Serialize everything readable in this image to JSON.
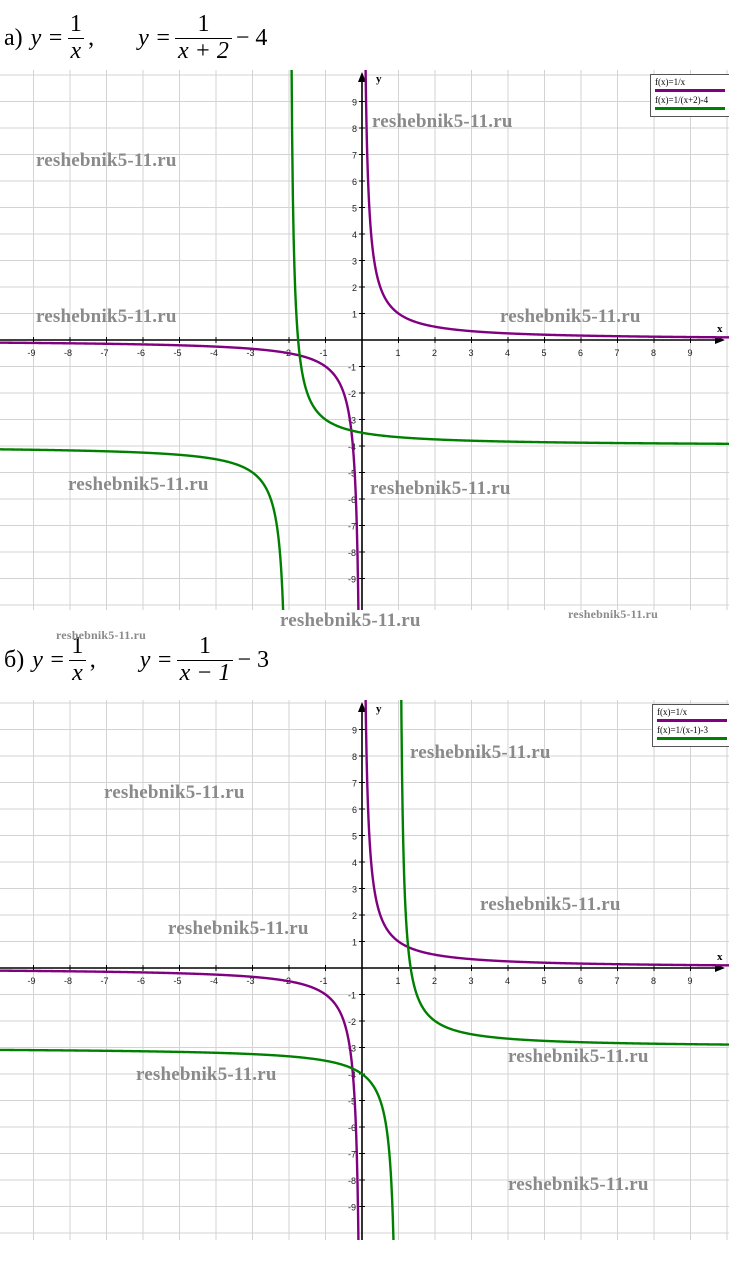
{
  "chart_data": [
    {
      "type": "line",
      "part_label": "а)",
      "formulas": {
        "eq1_lhs": "y =",
        "eq1_num": "1",
        "eq1_den": "x",
        "eq1_tail": ",",
        "eq2_lhs": "y =",
        "eq2_num": "1",
        "eq2_den": "x + 2",
        "eq2_tail": "− 4"
      },
      "xlabel": "x",
      "ylabel": "y",
      "xlim": [
        -10,
        10
      ],
      "ylim": [
        -10,
        10
      ],
      "xticks": [
        -9,
        -8,
        -7,
        -6,
        -5,
        -4,
        -3,
        -2,
        -1,
        1,
        2,
        3,
        4,
        5,
        6,
        7,
        8,
        9
      ],
      "yticks": [
        -9,
        -8,
        -7,
        -6,
        -5,
        -4,
        -3,
        -2,
        -1,
        1,
        2,
        3,
        4,
        5,
        6,
        7,
        8,
        9
      ],
      "grid": true,
      "legend_position": "top-right",
      "series": [
        {
          "name": "f(x)=1/x",
          "color": "#800080",
          "function": "1/x",
          "pole": 0,
          "asymptote_y": 0
        },
        {
          "name": "f(x)=1/(x+2)-4",
          "color": "#008000",
          "function": "1/(x+2)-4",
          "pole": -2,
          "asymptote_y": -4
        }
      ]
    },
    {
      "type": "line",
      "part_label": "б)",
      "formulas": {
        "eq1_lhs": "y =",
        "eq1_num": "1",
        "eq1_den": "x",
        "eq1_tail": ",",
        "eq2_lhs": "y =",
        "eq2_num": "1",
        "eq2_den": "x − 1",
        "eq2_tail": "− 3"
      },
      "xlabel": "x",
      "ylabel": "y",
      "xlim": [
        -10,
        10
      ],
      "ylim": [
        -10,
        10
      ],
      "xticks": [
        -9,
        -8,
        -7,
        -6,
        -5,
        -4,
        -3,
        -2,
        -1,
        1,
        2,
        3,
        4,
        5,
        6,
        7,
        8,
        9
      ],
      "yticks": [
        -9,
        -8,
        -7,
        -6,
        -5,
        -4,
        -3,
        -2,
        -1,
        1,
        2,
        3,
        4,
        5,
        6,
        7,
        8,
        9
      ],
      "grid": true,
      "legend_position": "top-right",
      "series": [
        {
          "name": "f(x)=1/x",
          "color": "#800080",
          "function": "1/x",
          "pole": 0,
          "asymptote_y": 0
        },
        {
          "name": "f(x)=1/(x-1)-3",
          "color": "#008000",
          "function": "1/(x-1)-3",
          "pole": 1,
          "asymptote_y": -3
        }
      ]
    }
  ],
  "watermark": "reshebnik5-11.ru"
}
